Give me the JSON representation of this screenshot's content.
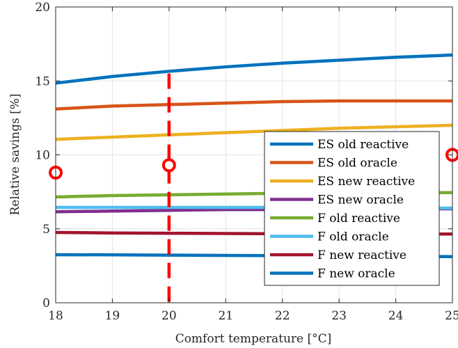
{
  "chart_data": {
    "type": "line",
    "xlabel": "Comfort temperature [°C]",
    "ylabel": "Relative savings [%]",
    "xlim": [
      18,
      25
    ],
    "ylim": [
      0,
      20
    ],
    "x_ticks": [
      18,
      19,
      20,
      21,
      22,
      23,
      24,
      25
    ],
    "y_ticks": [
      0,
      5,
      10,
      15,
      20
    ],
    "grid": true,
    "legend_position": "lower-right",
    "x": [
      18,
      19,
      20,
      21,
      22,
      23,
      24,
      25
    ],
    "series": [
      {
        "name": "ES old reactive",
        "color": "#0072BD",
        "values": [
          14.85,
          15.3,
          15.65,
          15.95,
          16.2,
          16.4,
          16.6,
          16.75
        ]
      },
      {
        "name": "ES old oracle",
        "color": "#D95319",
        "values": [
          13.1,
          13.3,
          13.4,
          13.5,
          13.6,
          13.65,
          13.65,
          13.65
        ]
      },
      {
        "name": "ES new reactive",
        "color": "#EDB120",
        "values": [
          11.05,
          11.2,
          11.35,
          11.5,
          11.65,
          11.8,
          11.9,
          12.0
        ]
      },
      {
        "name": "ES new oracle",
        "color": "#7E2F8E",
        "values": [
          6.15,
          6.2,
          6.25,
          6.3,
          6.3,
          6.35,
          6.35,
          6.35
        ]
      },
      {
        "name": "F old reactive",
        "color": "#77AC30",
        "values": [
          7.15,
          7.25,
          7.3,
          7.35,
          7.4,
          7.4,
          7.45,
          7.45
        ]
      },
      {
        "name": "F old oracle",
        "color": "#4DBEEE",
        "values": [
          6.45,
          6.45,
          6.45,
          6.45,
          6.45,
          6.45,
          6.4,
          6.4
        ]
      },
      {
        "name": "F new reactive",
        "color": "#A2142F",
        "values": [
          4.75,
          4.72,
          4.7,
          4.68,
          4.67,
          4.66,
          4.65,
          4.65
        ]
      },
      {
        "name": "F new oracle",
        "color": "#0072BD",
        "values": [
          3.25,
          3.24,
          3.22,
          3.2,
          3.18,
          3.16,
          3.14,
          3.12
        ]
      }
    ],
    "markers": [
      {
        "x": 18,
        "y": 8.8,
        "color": "#FF0000",
        "shape": "circle"
      },
      {
        "x": 20,
        "y": 9.3,
        "color": "#FF0000",
        "shape": "circle"
      },
      {
        "x": 25,
        "y": 10.0,
        "color": "#FF0000",
        "shape": "circle"
      }
    ],
    "vline": {
      "x": 20,
      "color": "#FF0000",
      "style": "dashed"
    }
  }
}
